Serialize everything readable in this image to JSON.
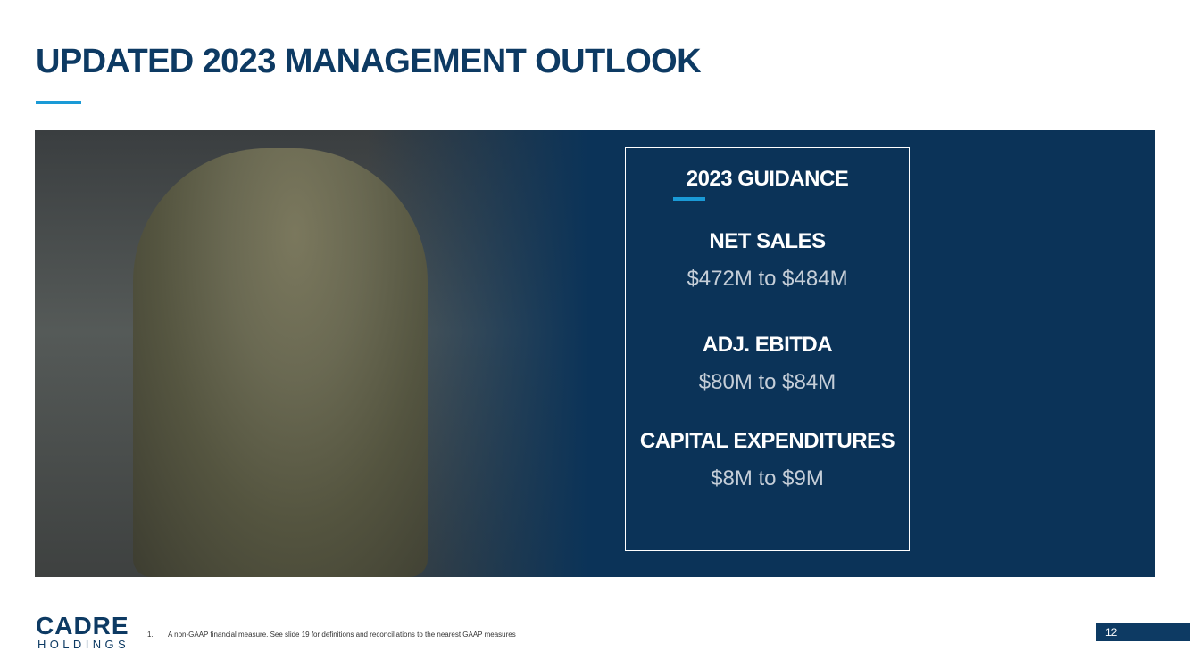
{
  "header": {
    "title": "UPDATED 2023 MANAGEMENT OUTLOOK"
  },
  "guidance": {
    "heading": "2023 GUIDANCE",
    "items": [
      {
        "label": "NET SALES",
        "value": "$472M to $484M"
      },
      {
        "label": "ADJ. EBITDA",
        "value": "$80M to $84M"
      },
      {
        "label": "CAPITAL EXPENDITURES",
        "value": "$8M to $9M"
      }
    ]
  },
  "footer": {
    "logo": "CADRE",
    "logo_sub": "HOLDINGS",
    "footnote_number": "1.",
    "footnote": "A non-GAAP financial measure. See slide 19 for definitions and reconciliations to the nearest GAAP measures",
    "page_number": "12"
  }
}
